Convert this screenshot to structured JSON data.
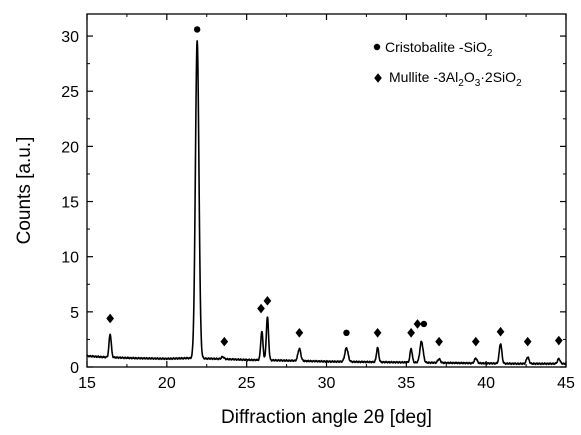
{
  "chart_data": {
    "type": "line",
    "title": "",
    "xlabel": "Diffraction angle 2θ [deg]",
    "ylabel": "Counts [a.u.]",
    "xlim": [
      15,
      45
    ],
    "ylim": [
      0,
      32
    ],
    "xticks": [
      15,
      20,
      25,
      30,
      35,
      40,
      45
    ],
    "yticks": [
      0,
      5,
      10,
      15,
      20,
      25,
      30
    ],
    "grid": false,
    "legend_position": "top-right",
    "legend": [
      {
        "marker": "circle",
        "text": "Cristobalite -SiO",
        "sub": "2",
        "series": "cristobalite"
      },
      {
        "marker": "diamond",
        "text": "Mullite -3Al",
        "sub1": "2",
        "mid1": "O",
        "sub2": "3",
        "mid2": "·2SiO",
        "sub3": "2",
        "series": "mullite"
      }
    ],
    "series": [
      {
        "name": "",
        "baseline": [
          [
            15.0,
            1.0
          ],
          [
            16.0,
            0.9
          ],
          [
            18.0,
            0.8
          ],
          [
            20.0,
            0.75
          ],
          [
            21.3,
            0.8
          ],
          [
            23.0,
            0.75
          ],
          [
            25.0,
            0.65
          ],
          [
            27.0,
            0.6
          ],
          [
            30.0,
            0.5
          ],
          [
            33.0,
            0.45
          ],
          [
            36.0,
            0.4
          ],
          [
            39.0,
            0.35
          ],
          [
            42.0,
            0.3
          ],
          [
            45.0,
            0.3
          ]
        ],
        "peaks": [
          {
            "x": 16.45,
            "height": 2.1,
            "width": 0.07
          },
          {
            "x": 21.9,
            "height": 28.8,
            "width": 0.11
          },
          {
            "x": 23.5,
            "height": 0.2,
            "width": 0.08
          },
          {
            "x": 25.95,
            "height": 2.6,
            "width": 0.07
          },
          {
            "x": 26.3,
            "height": 3.9,
            "width": 0.07
          },
          {
            "x": 28.3,
            "height": 1.1,
            "width": 0.09
          },
          {
            "x": 31.25,
            "height": 1.25,
            "width": 0.1
          },
          {
            "x": 33.2,
            "height": 1.3,
            "width": 0.07
          },
          {
            "x": 35.3,
            "height": 1.25,
            "width": 0.07
          },
          {
            "x": 35.95,
            "height": 1.9,
            "width": 0.1
          },
          {
            "x": 37.05,
            "height": 0.35,
            "width": 0.08
          },
          {
            "x": 39.35,
            "height": 0.45,
            "width": 0.08
          },
          {
            "x": 40.9,
            "height": 1.8,
            "width": 0.08
          },
          {
            "x": 42.6,
            "height": 0.6,
            "width": 0.08
          },
          {
            "x": 44.55,
            "height": 0.45,
            "width": 0.08
          }
        ]
      }
    ],
    "phase_markers": [
      {
        "phase": "mullite",
        "x": 16.45,
        "y": 4.4
      },
      {
        "phase": "cristobalite",
        "x": 21.9,
        "y": 30.6
      },
      {
        "phase": "mullite",
        "x": 23.6,
        "y": 2.3
      },
      {
        "phase": "mullite",
        "x": 25.9,
        "y": 5.3
      },
      {
        "phase": "mullite",
        "x": 26.3,
        "y": 6.0
      },
      {
        "phase": "mullite",
        "x": 28.3,
        "y": 3.1
      },
      {
        "phase": "cristobalite",
        "x": 31.25,
        "y": 3.1
      },
      {
        "phase": "mullite",
        "x": 33.2,
        "y": 3.1
      },
      {
        "phase": "mullite",
        "x": 35.3,
        "y": 3.1
      },
      {
        "phase": "mullite",
        "x": 35.7,
        "y": 3.9
      },
      {
        "phase": "cristobalite",
        "x": 36.1,
        "y": 3.9
      },
      {
        "phase": "mullite",
        "x": 37.05,
        "y": 2.3
      },
      {
        "phase": "mullite",
        "x": 39.35,
        "y": 2.3
      },
      {
        "phase": "mullite",
        "x": 40.9,
        "y": 3.2
      },
      {
        "phase": "mullite",
        "x": 42.6,
        "y": 2.3
      },
      {
        "phase": "mullite",
        "x": 44.55,
        "y": 2.4
      }
    ]
  }
}
